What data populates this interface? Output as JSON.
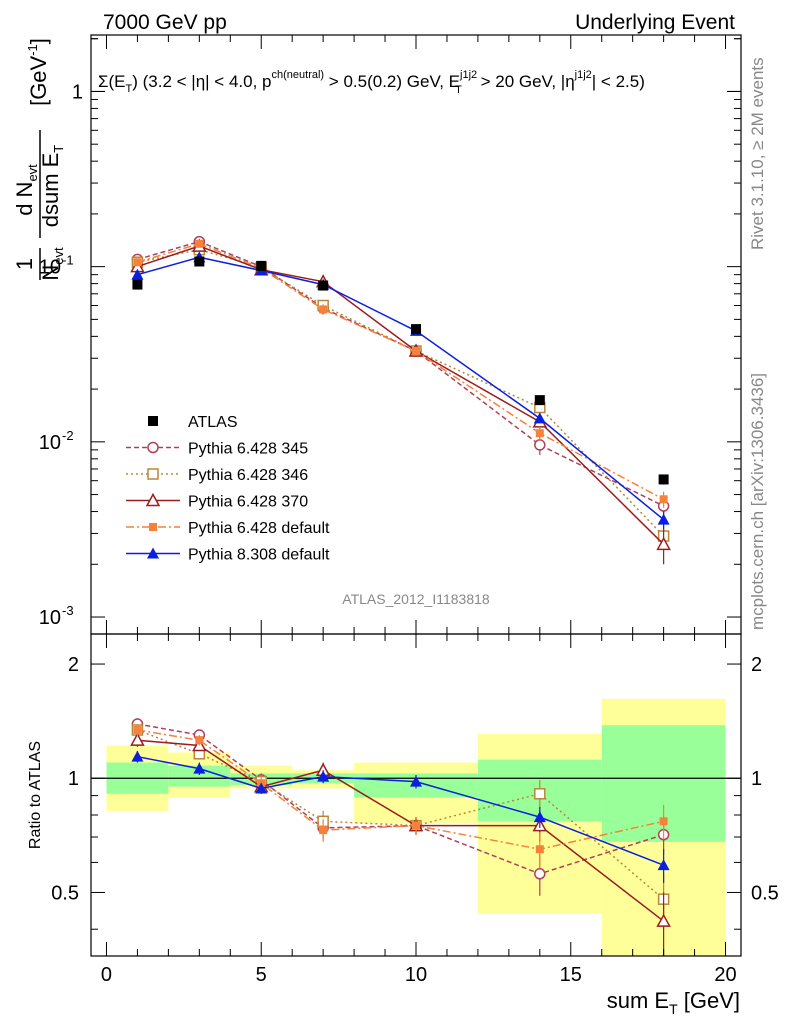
{
  "header": {
    "left": "7000 GeV pp",
    "right": "Underlying Event"
  },
  "side_text": {
    "top": "Rivet 3.1.10, ≥ 2M events",
    "bottom": "mcplots.cern.ch [arXiv:1306.3436]"
  },
  "analysis_label": "ATLAS_2012_I1183818",
  "colors": {
    "ATLAS": "#000000",
    "Pythia 6.428 345": "#b0405a",
    "Pythia 6.428 346": "#b8863a",
    "Pythia 6.428 370": "#9b1c1c",
    "Pythia 6.428 default": "#f5813a",
    "Pythia 8.308 default": "#0b1fe0",
    "band_inner": "#99ff99",
    "band_outer": "#ffff99"
  },
  "chart_data": [
    {
      "type": "scatter",
      "panel": "main",
      "title": "Σ(E_T) (3.2 < |η| < 4.0, p_T^{ch(neutral)} > 0.5(0.2) GeV, E_T^{j1j2} > 20 GeV, |η^{j1j2}| < 2.5)",
      "ylabel": "1/N_evt dN_evt/dsum E_T [GeV^-1]",
      "xlim": [
        -0.5,
        20.5
      ],
      "ylim": [
        0.0008,
        2.1
      ],
      "yscale": "log",
      "yticks": [
        0.001,
        0.01,
        0.1,
        1
      ],
      "ytick_labels": [
        "10^-3",
        "10^-2",
        "10^-1",
        "1"
      ],
      "legend_position": "middle-left",
      "x": [
        1,
        3,
        5,
        7,
        10,
        14,
        18
      ],
      "series": [
        {
          "name": "ATLAS",
          "marker": "filled-square",
          "linestyle": "none",
          "values": [
            0.079,
            0.107,
            0.101,
            0.078,
            0.044,
            0.0173,
            0.0061
          ],
          "errors": [
            0.003,
            0.004,
            0.003,
            0.003,
            0.002,
            0.0008,
            0.0004
          ]
        },
        {
          "name": "Pythia 6.428 345",
          "marker": "open-circle",
          "linestyle": "dashed",
          "values": [
            0.11,
            0.139,
            0.1,
            0.058,
            0.033,
            0.0096,
            0.0043
          ],
          "errors": [
            0.005,
            0.005,
            0.004,
            0.004,
            0.002,
            0.0012,
            0.0006
          ]
        },
        {
          "name": "Pythia 6.428 346",
          "marker": "open-square",
          "linestyle": "dotted",
          "values": [
            0.106,
            0.125,
            0.099,
            0.06,
            0.033,
            0.0157,
            0.0029
          ],
          "errors": [
            0.005,
            0.005,
            0.004,
            0.004,
            0.002,
            0.0014,
            0.0005
          ]
        },
        {
          "name": "Pythia 6.428 370",
          "marker": "open-triangle",
          "linestyle": "solid",
          "values": [
            0.1,
            0.131,
            0.096,
            0.082,
            0.033,
            0.013,
            0.0026
          ],
          "errors": [
            0.005,
            0.005,
            0.004,
            0.004,
            0.002,
            0.0012,
            0.0006
          ]
        },
        {
          "name": "Pythia 6.428 default",
          "marker": "filled-small-square",
          "linestyle": "dashdot",
          "values": [
            0.106,
            0.135,
            0.098,
            0.057,
            0.033,
            0.0112,
            0.0047
          ],
          "errors": [
            0.005,
            0.005,
            0.004,
            0.004,
            0.002,
            0.001,
            0.0005
          ]
        },
        {
          "name": "Pythia 8.308 default",
          "marker": "filled-triangle",
          "linestyle": "solid",
          "values": [
            0.09,
            0.113,
            0.095,
            0.079,
            0.043,
            0.0136,
            0.0036
          ],
          "errors": [
            0.003,
            0.004,
            0.003,
            0.003,
            0.002,
            0.0008,
            0.0004
          ]
        }
      ]
    },
    {
      "type": "scatter",
      "panel": "ratio",
      "xlabel": "sum E_T [GeV]",
      "ylabel": "Ratio to ATLAS",
      "xlim": [
        -0.5,
        20.5
      ],
      "ylim": [
        0.34,
        2.4
      ],
      "yscale": "log",
      "yticks": [
        0.5,
        1,
        2
      ],
      "ytick_labels": [
        "0.5",
        "1",
        "2"
      ],
      "xticks": [
        0,
        5,
        10,
        15,
        20
      ],
      "reference_line": 1,
      "bands": [
        {
          "x0": 0,
          "x1": 2,
          "inner": [
            0.91,
            1.1
          ],
          "outer": [
            0.82,
            1.22
          ]
        },
        {
          "x0": 2,
          "x1": 4,
          "inner": [
            0.95,
            1.08
          ],
          "outer": [
            0.89,
            1.17
          ]
        },
        {
          "x0": 4,
          "x1": 6,
          "inner": [
            0.96,
            1.03
          ],
          "outer": [
            0.94,
            1.08
          ]
        },
        {
          "x0": 6,
          "x1": 8,
          "inner": [
            0.97,
            1.03
          ],
          "outer": [
            0.94,
            1.05
          ]
        },
        {
          "x0": 8,
          "x1": 12,
          "inner": [
            0.89,
            1.03
          ],
          "outer": [
            0.76,
            1.1
          ]
        },
        {
          "x0": 12,
          "x1": 16,
          "inner": [
            0.77,
            1.12
          ],
          "outer": [
            0.44,
            1.31
          ]
        },
        {
          "x0": 16,
          "x1": 20,
          "inner": [
            0.68,
            1.38
          ],
          "outer": [
            0.33,
            1.62
          ]
        }
      ],
      "x": [
        1,
        3,
        5,
        7,
        10,
        14,
        18
      ],
      "series": [
        {
          "name": "Pythia 6.428 345",
          "values": [
            1.39,
            1.3,
            0.99,
            0.74,
            0.75,
            0.56,
            0.71
          ],
          "errors": [
            0.05,
            0.04,
            0.04,
            0.05,
            0.04,
            0.07,
            0.08
          ]
        },
        {
          "name": "Pythia 6.428 346",
          "values": [
            1.34,
            1.16,
            0.98,
            0.77,
            0.75,
            0.91,
            0.48
          ],
          "errors": [
            0.05,
            0.04,
            0.04,
            0.05,
            0.04,
            0.08,
            0.08
          ]
        },
        {
          "name": "Pythia 6.428 370",
          "values": [
            1.26,
            1.22,
            0.95,
            1.05,
            0.75,
            0.75,
            0.42
          ],
          "errors": [
            0.05,
            0.04,
            0.04,
            0.05,
            0.04,
            0.07,
            0.08
          ]
        },
        {
          "name": "Pythia 6.428 default",
          "values": [
            1.34,
            1.26,
            0.97,
            0.73,
            0.75,
            0.65,
            0.77
          ],
          "errors": [
            0.05,
            0.04,
            0.04,
            0.05,
            0.04,
            0.07,
            0.08
          ]
        },
        {
          "name": "Pythia 8.308 default",
          "values": [
            1.14,
            1.06,
            0.94,
            1.01,
            0.98,
            0.79,
            0.59
          ],
          "errors": [
            0.04,
            0.04,
            0.03,
            0.04,
            0.04,
            0.05,
            0.06
          ]
        }
      ]
    }
  ]
}
